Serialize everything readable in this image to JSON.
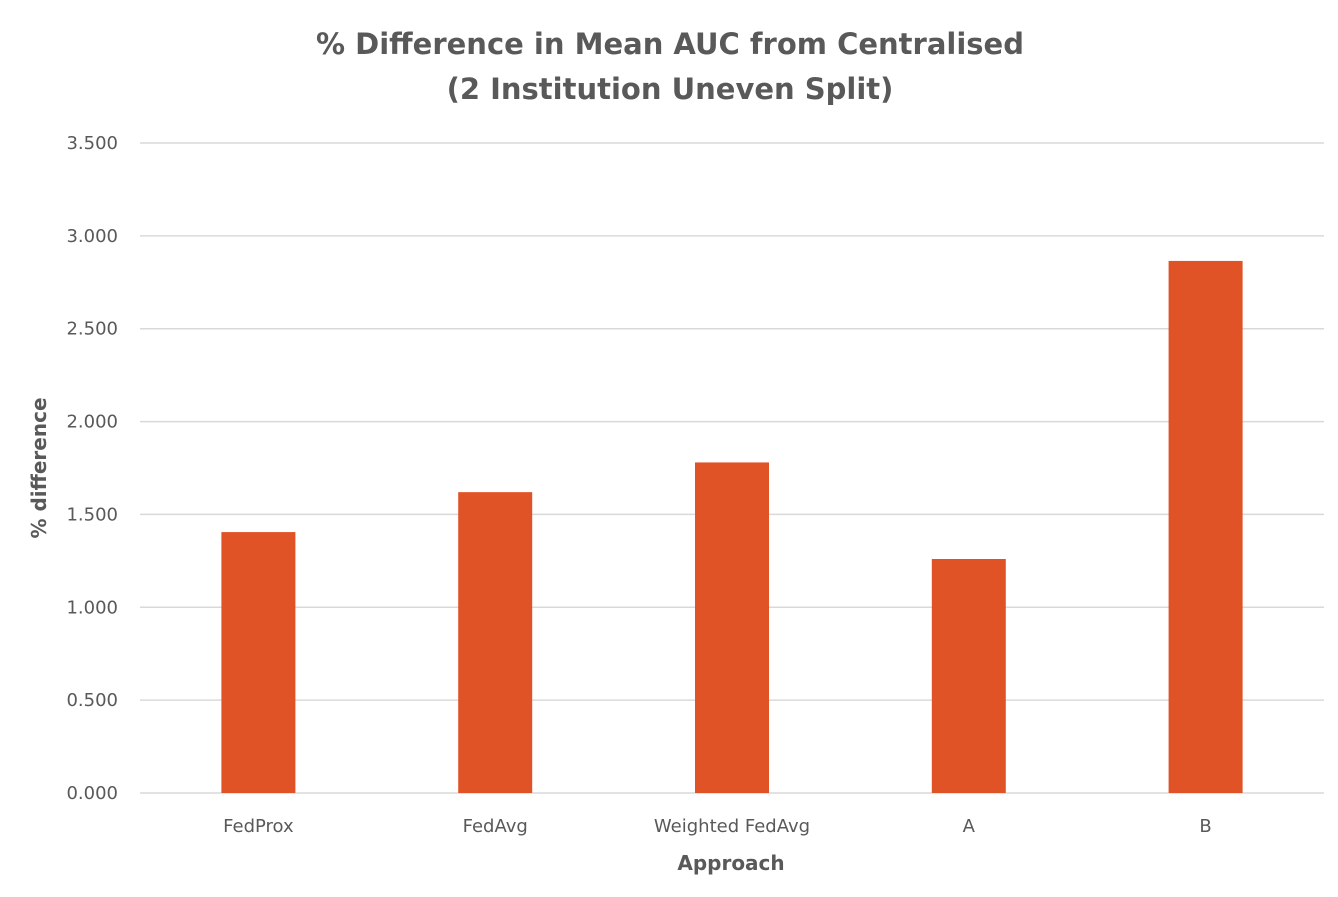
{
  "chart_data": {
    "type": "bar",
    "title_lines": [
      "% Difference in Mean AUC from Centralised",
      "(2 Institution Uneven Split)"
    ],
    "xlabel": "Approach",
    "ylabel": "% difference",
    "categories": [
      "FedProx",
      "FedAvg",
      "Weighted FedAvg",
      "A",
      "B"
    ],
    "values": [
      1.405,
      1.62,
      1.78,
      1.26,
      2.865
    ],
    "ylim": [
      0,
      3.5
    ],
    "yticks": [
      "0.000",
      "0.500",
      "1.000",
      "1.500",
      "2.000",
      "2.500",
      "3.000",
      "3.500"
    ],
    "ytick_values": [
      0,
      0.5,
      1,
      1.5,
      2,
      2.5,
      3,
      3.5
    ],
    "grid": true,
    "legend": "none",
    "bar_color": "#E05327"
  }
}
